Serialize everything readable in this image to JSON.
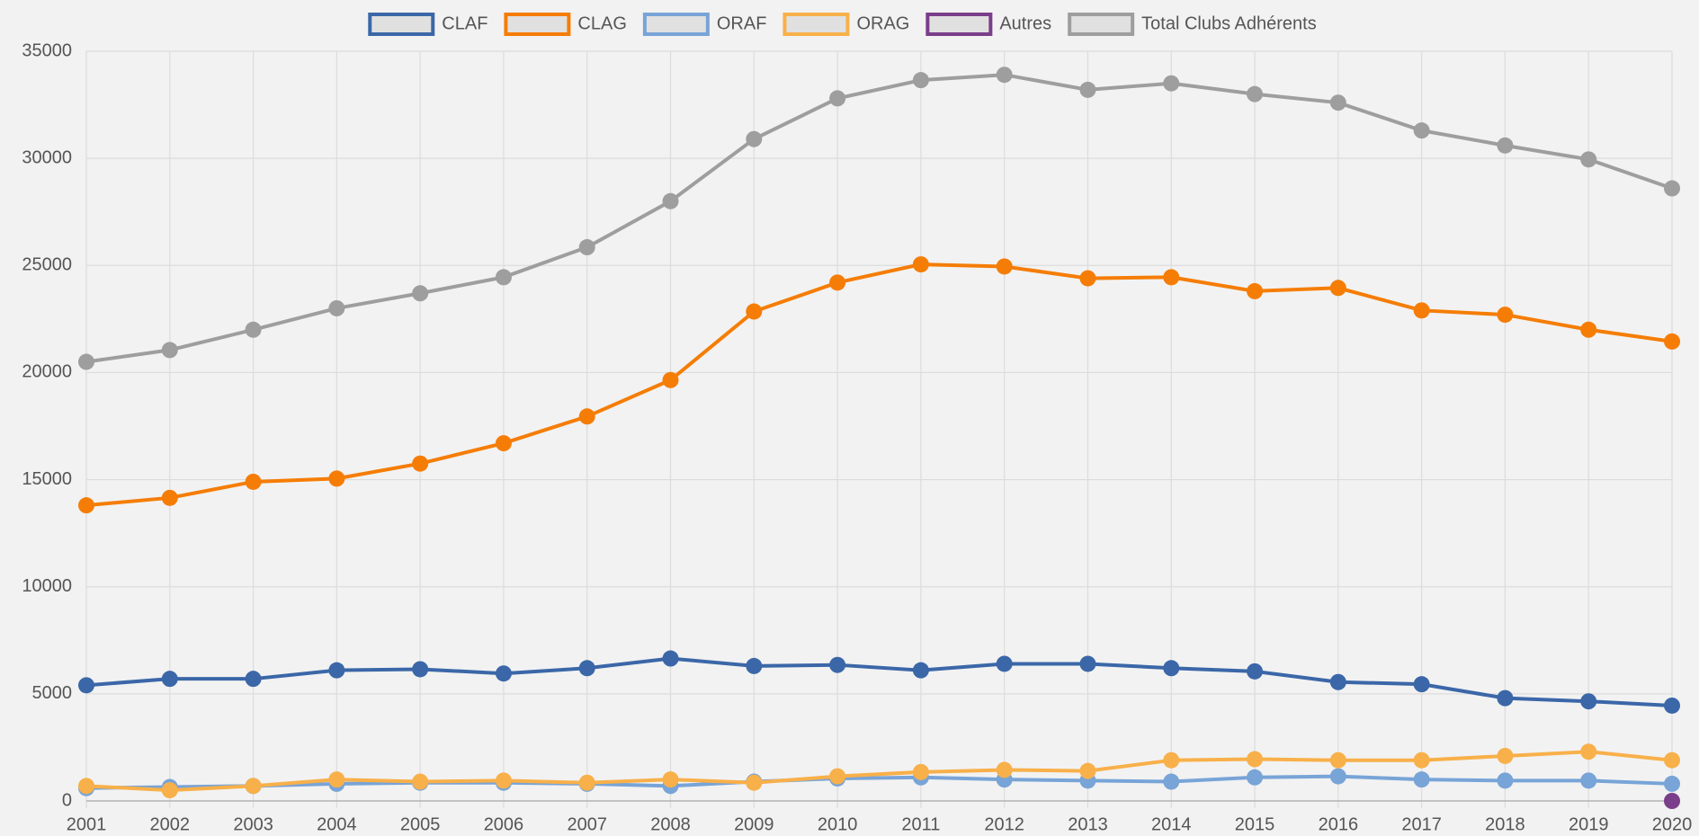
{
  "chart_data": {
    "type": "line",
    "categories": [
      "2001",
      "2002",
      "2003",
      "2004",
      "2005",
      "2006",
      "2007",
      "2008",
      "2009",
      "2010",
      "2011",
      "2012",
      "2013",
      "2014",
      "2015",
      "2016",
      "2017",
      "2018",
      "2019",
      "2020"
    ],
    "series": [
      {
        "name": "CLAF",
        "color": "#3b67a8",
        "values": [
          5400,
          5700,
          5700,
          6100,
          6150,
          5950,
          6200,
          6650,
          6300,
          6350,
          6100,
          6400,
          6400,
          6200,
          6050,
          5550,
          5450,
          4800,
          4650,
          4450
        ]
      },
      {
        "name": "CLAG",
        "color": "#f57d06",
        "values": [
          13800,
          14150,
          14900,
          15050,
          15750,
          16700,
          17950,
          19650,
          22850,
          24200,
          25050,
          24950,
          24400,
          24450,
          23800,
          23950,
          22900,
          22700,
          22000,
          21450
        ]
      },
      {
        "name": "ORAF",
        "color": "#78a4d7",
        "values": [
          600,
          650,
          700,
          800,
          850,
          850,
          800,
          700,
          900,
          1050,
          1100,
          1000,
          950,
          900,
          1100,
          1150,
          1000,
          950,
          950,
          800
        ]
      },
      {
        "name": "ORAG",
        "color": "#f8b04a",
        "values": [
          700,
          500,
          700,
          1000,
          900,
          950,
          850,
          1000,
          850,
          1150,
          1350,
          1450,
          1400,
          1900,
          1950,
          1900,
          1900,
          2100,
          2300,
          1900
        ]
      },
      {
        "name": "Autres",
        "color": "#7a3e8a",
        "values": [
          null,
          null,
          null,
          null,
          null,
          null,
          null,
          null,
          null,
          null,
          null,
          null,
          null,
          null,
          null,
          null,
          null,
          null,
          null,
          0
        ]
      },
      {
        "name": "Total Clubs Adhérents",
        "color": "#9e9e9e",
        "values": [
          20500,
          21050,
          22000,
          23000,
          23700,
          24450,
          25850,
          28000,
          30900,
          32800,
          33650,
          33900,
          33200,
          33500,
          33000,
          32600,
          31300,
          30600,
          29950,
          28600
        ]
      }
    ],
    "ylim": [
      0,
      35000
    ],
    "yticks": [
      0,
      5000,
      10000,
      15000,
      20000,
      25000,
      30000,
      35000
    ],
    "grid": true,
    "legend": "top"
  }
}
